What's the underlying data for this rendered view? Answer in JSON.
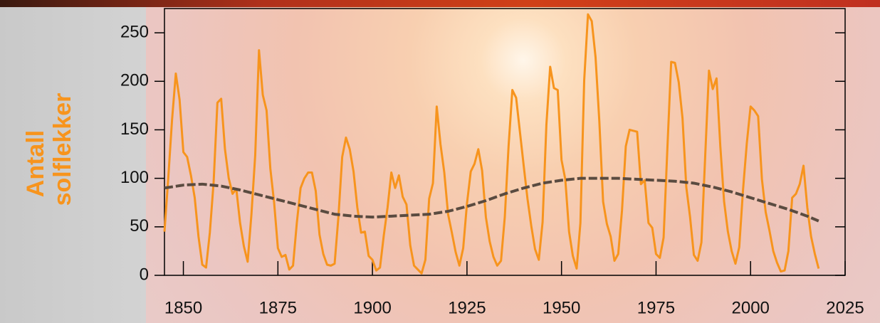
{
  "chart_data": {
    "type": "line",
    "ylabel": [
      "Antall",
      "solflekker"
    ],
    "xlim": [
      1845,
      2025
    ],
    "xticks": [
      1850,
      1875,
      1900,
      1925,
      1950,
      1975,
      2000,
      2025
    ],
    "ylim": [
      0,
      275
    ],
    "yticks": [
      0,
      50,
      100,
      150,
      200,
      250
    ],
    "grid": false,
    "series": [
      {
        "color": "#f7941d",
        "style": "solid",
        "x": [
          1845,
          1846,
          1847,
          1848,
          1849,
          1850,
          1851,
          1852,
          1853,
          1854,
          1855,
          1856,
          1857,
          1858,
          1859,
          1860,
          1861,
          1862,
          1863,
          1864,
          1865,
          1866,
          1867,
          1868,
          1869,
          1870,
          1871,
          1872,
          1873,
          1874,
          1875,
          1876,
          1877,
          1878,
          1879,
          1880,
          1881,
          1882,
          1883,
          1884,
          1885,
          1886,
          1887,
          1888,
          1889,
          1890,
          1891,
          1892,
          1893,
          1894,
          1895,
          1896,
          1897,
          1898,
          1899,
          1900,
          1901,
          1902,
          1903,
          1904,
          1905,
          1906,
          1907,
          1908,
          1909,
          1910,
          1911,
          1912,
          1913,
          1914,
          1915,
          1916,
          1917,
          1918,
          1919,
          1920,
          1921,
          1922,
          1923,
          1924,
          1925,
          1926,
          1927,
          1928,
          1929,
          1930,
          1931,
          1932,
          1933,
          1934,
          1935,
          1936,
          1937,
          1938,
          1939,
          1940,
          1941,
          1942,
          1943,
          1944,
          1945,
          1946,
          1947,
          1948,
          1949,
          1950,
          1951,
          1952,
          1953,
          1954,
          1955,
          1956,
          1957,
          1958,
          1959,
          1960,
          1961,
          1962,
          1963,
          1964,
          1965,
          1966,
          1967,
          1968,
          1969,
          1970,
          1971,
          1972,
          1973,
          1974,
          1975,
          1976,
          1977,
          1978,
          1979,
          1980,
          1981,
          1982,
          1983,
          1984,
          1985,
          1986,
          1987,
          1988,
          1989,
          1990,
          1991,
          1992,
          1993,
          1994,
          1995,
          1996,
          1997,
          1998,
          1999,
          2000,
          2001,
          2002,
          2003,
          2004,
          2005,
          2006,
          2007,
          2008,
          2009,
          2010,
          2011,
          2012,
          2013,
          2014,
          2015,
          2016,
          2017,
          2018
        ],
        "values": [
          45,
          100,
          160,
          208,
          181,
          127,
          122,
          103,
          80,
          40,
          11,
          8,
          44,
          96,
          178,
          182,
          130,
          100,
          84,
          89,
          54,
          30,
          14,
          63,
          124,
          232,
          186,
          170,
          110,
          75,
          28,
          19,
          21,
          6,
          10,
          54,
          90,
          100,
          106,
          106,
          87,
          42,
          22,
          11,
          10,
          12,
          60,
          122,
          142,
          130,
          107,
          70,
          44,
          45,
          20,
          16,
          5,
          8,
          41,
          70,
          106,
          90,
          103,
          81,
          73,
          31,
          10,
          6,
          2,
          16,
          79,
          95,
          174,
          135,
          106,
          63,
          44,
          24,
          10,
          28,
          74,
          107,
          115,
          130,
          108,
          60,
          35,
          19,
          10,
          15,
          60,
          133,
          191,
          183,
          148,
          113,
          79,
          51,
          27,
          16,
          55,
          155,
          215,
          193,
          191,
          119,
          99,
          45,
          20,
          7,
          54,
          201,
          269,
          262,
          225,
          159,
          76,
          53,
          40,
          15,
          22,
          67,
          133,
          150,
          149,
          148,
          94,
          98,
          54,
          49,
          22,
          18,
          39,
          131,
          220,
          219,
          199,
          162,
          91,
          60,
          21,
          15,
          34,
          123,
          211,
          192,
          203,
          133,
          76,
          45,
          25,
          12,
          29,
          88,
          136,
          174,
          170,
          164,
          99,
          65,
          46,
          25,
          13,
          4,
          5,
          25,
          80,
          84,
          94,
          113,
          70,
          40,
          22,
          7
        ]
      },
      {
        "color": "#5a4b40",
        "style": "dashed",
        "x": [
          1845,
          1850,
          1855,
          1860,
          1865,
          1870,
          1875,
          1880,
          1885,
          1890,
          1895,
          1900,
          1905,
          1910,
          1915,
          1920,
          1925,
          1930,
          1935,
          1940,
          1945,
          1950,
          1955,
          1960,
          1965,
          1970,
          1975,
          1980,
          1985,
          1990,
          1995,
          2000,
          2005,
          2010,
          2015,
          2018
        ],
        "values": [
          90,
          93,
          94,
          92,
          88,
          83,
          78,
          73,
          68,
          63,
          61,
          60,
          61,
          62,
          63,
          66,
          71,
          77,
          84,
          90,
          95,
          98,
          100,
          100,
          100,
          99,
          98,
          97,
          95,
          91,
          86,
          80,
          74,
          68,
          61,
          56
        ]
      }
    ]
  }
}
